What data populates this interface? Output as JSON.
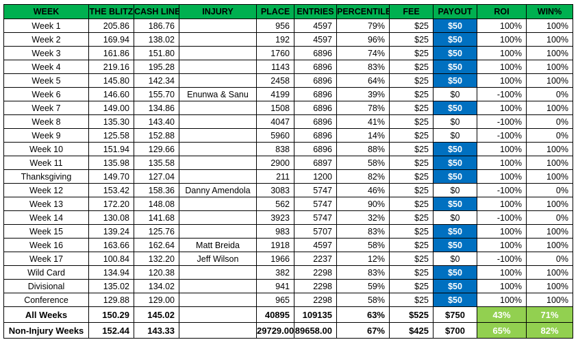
{
  "headers": [
    "WEEK",
    "THE BLITZ",
    "CASH LINE",
    "INJURY",
    "PLACE",
    "ENTRIES",
    "PERCENTILE",
    "FEE",
    "PAYOUT",
    "ROI",
    "WIN%"
  ],
  "rows": [
    {
      "week": "Week 1",
      "blitz": "205.86",
      "cash": "186.76",
      "injury": "",
      "place": "956",
      "entries": "4597",
      "pct": "79%",
      "fee": "$25",
      "payout": "$50",
      "roi": "100%",
      "win": "100%",
      "won": true
    },
    {
      "week": "Week 2",
      "blitz": "169.94",
      "cash": "138.02",
      "injury": "",
      "place": "192",
      "entries": "4597",
      "pct": "96%",
      "fee": "$25",
      "payout": "$50",
      "roi": "100%",
      "win": "100%",
      "won": true
    },
    {
      "week": "Week 3",
      "blitz": "161.86",
      "cash": "151.80",
      "injury": "",
      "place": "1760",
      "entries": "6896",
      "pct": "74%",
      "fee": "$25",
      "payout": "$50",
      "roi": "100%",
      "win": "100%",
      "won": true
    },
    {
      "week": "Week 4",
      "blitz": "219.16",
      "cash": "195.28",
      "injury": "",
      "place": "1143",
      "entries": "6896",
      "pct": "83%",
      "fee": "$25",
      "payout": "$50",
      "roi": "100%",
      "win": "100%",
      "won": true
    },
    {
      "week": "Week 5",
      "blitz": "145.80",
      "cash": "142.34",
      "injury": "",
      "place": "2458",
      "entries": "6896",
      "pct": "64%",
      "fee": "$25",
      "payout": "$50",
      "roi": "100%",
      "win": "100%",
      "won": true
    },
    {
      "week": "Week 6",
      "blitz": "146.60",
      "cash": "155.70",
      "injury": "Enunwa & Sanu",
      "place": "4199",
      "entries": "6896",
      "pct": "39%",
      "fee": "$25",
      "payout": "$0",
      "roi": "-100%",
      "win": "0%",
      "won": false
    },
    {
      "week": "Week 7",
      "blitz": "149.00",
      "cash": "134.86",
      "injury": "",
      "place": "1508",
      "entries": "6896",
      "pct": "78%",
      "fee": "$25",
      "payout": "$50",
      "roi": "100%",
      "win": "100%",
      "won": true
    },
    {
      "week": "Week 8",
      "blitz": "135.30",
      "cash": "143.40",
      "injury": "",
      "place": "4047",
      "entries": "6896",
      "pct": "41%",
      "fee": "$25",
      "payout": "$0",
      "roi": "-100%",
      "win": "0%",
      "won": false
    },
    {
      "week": "Week 9",
      "blitz": "125.58",
      "cash": "152.88",
      "injury": "",
      "place": "5960",
      "entries": "6896",
      "pct": "14%",
      "fee": "$25",
      "payout": "$0",
      "roi": "-100%",
      "win": "0%",
      "won": false
    },
    {
      "week": "Week 10",
      "blitz": "151.94",
      "cash": "129.66",
      "injury": "",
      "place": "838",
      "entries": "6896",
      "pct": "88%",
      "fee": "$25",
      "payout": "$50",
      "roi": "100%",
      "win": "100%",
      "won": true
    },
    {
      "week": "Week 11",
      "blitz": "135.98",
      "cash": "135.58",
      "injury": "",
      "place": "2900",
      "entries": "6897",
      "pct": "58%",
      "fee": "$25",
      "payout": "$50",
      "roi": "100%",
      "win": "100%",
      "won": true
    },
    {
      "week": "Thanksgiving",
      "blitz": "149.70",
      "cash": "127.04",
      "injury": "",
      "place": "211",
      "entries": "1200",
      "pct": "82%",
      "fee": "$25",
      "payout": "$50",
      "roi": "100%",
      "win": "100%",
      "won": true
    },
    {
      "week": "Week 12",
      "blitz": "153.42",
      "cash": "158.36",
      "injury": "Danny Amendola",
      "place": "3083",
      "entries": "5747",
      "pct": "46%",
      "fee": "$25",
      "payout": "$0",
      "roi": "-100%",
      "win": "0%",
      "won": false
    },
    {
      "week": "Week 13",
      "blitz": "172.20",
      "cash": "148.08",
      "injury": "",
      "place": "562",
      "entries": "5747",
      "pct": "90%",
      "fee": "$25",
      "payout": "$50",
      "roi": "100%",
      "win": "100%",
      "won": true
    },
    {
      "week": "Week 14",
      "blitz": "130.08",
      "cash": "141.68",
      "injury": "",
      "place": "3923",
      "entries": "5747",
      "pct": "32%",
      "fee": "$25",
      "payout": "$0",
      "roi": "-100%",
      "win": "0%",
      "won": false
    },
    {
      "week": "Week 15",
      "blitz": "139.24",
      "cash": "125.76",
      "injury": "",
      "place": "983",
      "entries": "5707",
      "pct": "83%",
      "fee": "$25",
      "payout": "$50",
      "roi": "100%",
      "win": "100%",
      "won": true
    },
    {
      "week": "Week 16",
      "blitz": "163.66",
      "cash": "162.64",
      "injury": "Matt Breida",
      "place": "1918",
      "entries": "4597",
      "pct": "58%",
      "fee": "$25",
      "payout": "$50",
      "roi": "100%",
      "win": "100%",
      "won": true
    },
    {
      "week": "Week 17",
      "blitz": "100.84",
      "cash": "132.20",
      "injury": "Jeff Wilson",
      "place": "1966",
      "entries": "2237",
      "pct": "12%",
      "fee": "$25",
      "payout": "$0",
      "roi": "-100%",
      "win": "0%",
      "won": false
    },
    {
      "week": "Wild Card",
      "blitz": "134.94",
      "cash": "120.38",
      "injury": "",
      "place": "382",
      "entries": "2298",
      "pct": "83%",
      "fee": "$25",
      "payout": "$50",
      "roi": "100%",
      "win": "100%",
      "won": true
    },
    {
      "week": "Divisional",
      "blitz": "135.02",
      "cash": "134.02",
      "injury": "",
      "place": "941",
      "entries": "2298",
      "pct": "59%",
      "fee": "$25",
      "payout": "$50",
      "roi": "100%",
      "win": "100%",
      "won": true
    },
    {
      "week": "Conference",
      "blitz": "129.88",
      "cash": "129.00",
      "injury": "",
      "place": "965",
      "entries": "2298",
      "pct": "58%",
      "fee": "$25",
      "payout": "$50",
      "roi": "100%",
      "win": "100%",
      "won": true
    }
  ],
  "summary": [
    {
      "week": "All Weeks",
      "blitz": "150.29",
      "cash": "145.02",
      "injury": "",
      "place": "40895",
      "entries": "109135",
      "pct": "63%",
      "fee": "$525",
      "payout": "$750",
      "roi": "43%",
      "win": "71%"
    },
    {
      "week": "Non-Injury Weeks",
      "blitz": "152.44",
      "cash": "143.33",
      "injury": "",
      "place": "29729.00",
      "entries": "89658.00",
      "pct": "67%",
      "fee": "$425",
      "payout": "$700",
      "roi": "65%",
      "win": "82%"
    }
  ],
  "colors": {
    "header": "#00b050",
    "win_payout": "#0070c0",
    "summary_highlight": "#92d050"
  }
}
